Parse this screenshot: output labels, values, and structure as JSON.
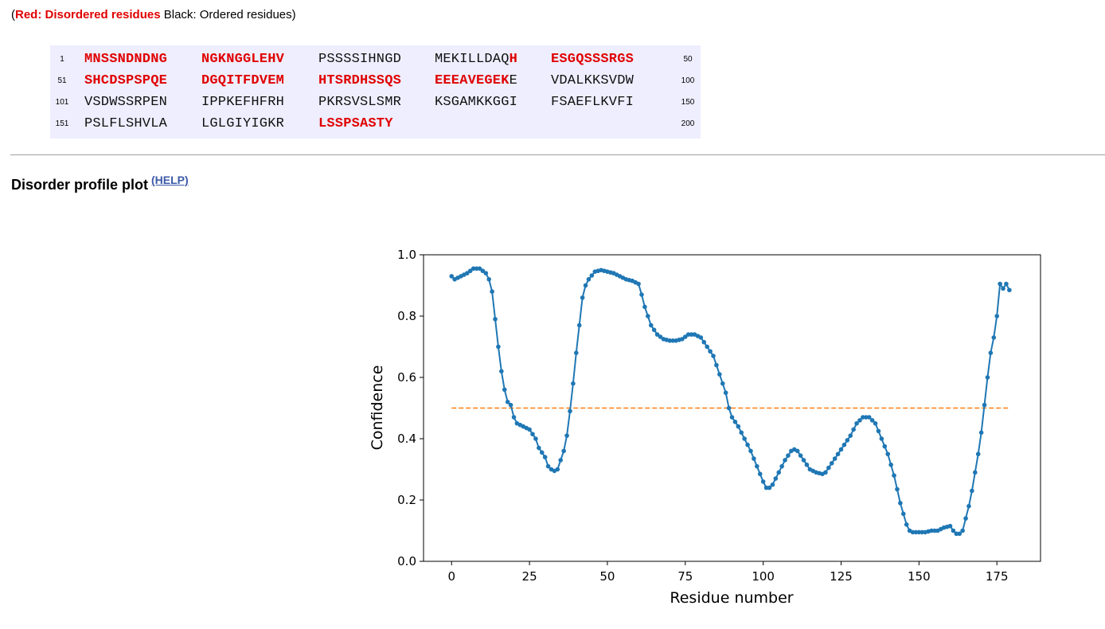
{
  "legend": {
    "open_paren": "(",
    "red_label": "Red: Disordered residues",
    "black_label": " Black: Ordered residues)"
  },
  "sequence_rows": [
    {
      "start": "1",
      "end": "50",
      "blocks": [
        [
          {
            "t": "MNSSNDNDNG",
            "d": true
          }
        ],
        [
          {
            "t": "NGKNGGLEHV",
            "d": true
          }
        ],
        [
          {
            "t": "PSSSSIHNGD",
            "d": false
          }
        ],
        [
          {
            "t": "MEKILLDAQ",
            "d": false
          },
          {
            "t": "H",
            "d": true
          }
        ],
        [
          {
            "t": "ESGQSSSRGS",
            "d": true
          }
        ]
      ]
    },
    {
      "start": "51",
      "end": "100",
      "blocks": [
        [
          {
            "t": "SHCDSPSPQE",
            "d": true
          }
        ],
        [
          {
            "t": "DGQITFDVEM",
            "d": true
          }
        ],
        [
          {
            "t": "HTSRDHSSQS",
            "d": true
          }
        ],
        [
          {
            "t": "EEEAVEGEK",
            "d": true
          },
          {
            "t": "E",
            "d": false
          }
        ],
        [
          {
            "t": "VDALKKSVDW",
            "d": false
          }
        ]
      ]
    },
    {
      "start": "101",
      "end": "150",
      "blocks": [
        [
          {
            "t": "VSDWSSRPEN",
            "d": false
          }
        ],
        [
          {
            "t": "IPPKEFHFRH",
            "d": false
          }
        ],
        [
          {
            "t": "PKRSVSLSMR",
            "d": false
          }
        ],
        [
          {
            "t": "KSGAMKKGGI",
            "d": false
          }
        ],
        [
          {
            "t": "FSAEFLKVFI",
            "d": false
          }
        ]
      ]
    },
    {
      "start": "151",
      "end": "200",
      "blocks": [
        [
          {
            "t": "PSLFLSHVLA",
            "d": false
          }
        ],
        [
          {
            "t": "LGLGIYIGKR",
            "d": false
          }
        ],
        [
          {
            "t": "LSSPSASTY",
            "d": true
          }
        ]
      ]
    }
  ],
  "section": {
    "title": "Disorder profile plot",
    "help": "(HELP)"
  },
  "colors": {
    "disordered": "#e00000",
    "series": "#1f77b4",
    "threshold": "#ff7f0e",
    "sequence_bg": "#eeeeff"
  },
  "chart_data": {
    "type": "line",
    "xlabel": "Residue number",
    "ylabel": "Confidence",
    "xlim": [
      -9,
      189
    ],
    "ylim": [
      0,
      1
    ],
    "xticks": [
      0,
      25,
      50,
      75,
      100,
      125,
      150,
      175
    ],
    "yticks": [
      0.0,
      0.2,
      0.4,
      0.6,
      0.8,
      1.0
    ],
    "ytick_labels": [
      "0.0",
      "0.2",
      "0.4",
      "0.6",
      "0.8",
      "1.0"
    ],
    "grid": false,
    "threshold": 0.5,
    "threshold_range": [
      0,
      179
    ],
    "keypoints": [
      [
        0,
        0.93
      ],
      [
        1,
        0.92
      ],
      [
        3,
        0.93
      ],
      [
        5,
        0.94
      ],
      [
        7,
        0.955
      ],
      [
        9,
        0.955
      ],
      [
        11,
        0.94
      ],
      [
        12,
        0.92
      ],
      [
        13,
        0.88
      ],
      [
        14,
        0.79
      ],
      [
        15,
        0.7
      ],
      [
        16,
        0.62
      ],
      [
        17,
        0.56
      ],
      [
        18,
        0.52
      ],
      [
        19,
        0.51
      ],
      [
        20,
        0.47
      ],
      [
        21,
        0.45
      ],
      [
        23,
        0.44
      ],
      [
        25,
        0.43
      ],
      [
        27,
        0.4
      ],
      [
        28,
        0.37
      ],
      [
        30,
        0.34
      ],
      [
        31,
        0.31
      ],
      [
        32,
        0.3
      ],
      [
        33,
        0.295
      ],
      [
        34,
        0.3
      ],
      [
        35,
        0.33
      ],
      [
        36,
        0.36
      ],
      [
        37,
        0.41
      ],
      [
        38,
        0.49
      ],
      [
        39,
        0.58
      ],
      [
        40,
        0.68
      ],
      [
        41,
        0.77
      ],
      [
        42,
        0.86
      ],
      [
        43,
        0.9
      ],
      [
        44,
        0.92
      ],
      [
        46,
        0.945
      ],
      [
        48,
        0.95
      ],
      [
        50,
        0.945
      ],
      [
        52,
        0.94
      ],
      [
        54,
        0.93
      ],
      [
        56,
        0.92
      ],
      [
        58,
        0.915
      ],
      [
        60,
        0.905
      ],
      [
        61,
        0.87
      ],
      [
        62,
        0.83
      ],
      [
        63,
        0.8
      ],
      [
        64,
        0.77
      ],
      [
        66,
        0.74
      ],
      [
        68,
        0.725
      ],
      [
        70,
        0.72
      ],
      [
        72,
        0.72
      ],
      [
        74,
        0.725
      ],
      [
        76,
        0.74
      ],
      [
        78,
        0.74
      ],
      [
        80,
        0.73
      ],
      [
        82,
        0.7
      ],
      [
        84,
        0.67
      ],
      [
        86,
        0.61
      ],
      [
        88,
        0.55
      ],
      [
        89,
        0.5
      ],
      [
        90,
        0.47
      ],
      [
        92,
        0.44
      ],
      [
        94,
        0.4
      ],
      [
        96,
        0.36
      ],
      [
        98,
        0.31
      ],
      [
        100,
        0.26
      ],
      [
        101,
        0.24
      ],
      [
        102,
        0.24
      ],
      [
        103,
        0.25
      ],
      [
        105,
        0.29
      ],
      [
        107,
        0.33
      ],
      [
        109,
        0.36
      ],
      [
        110,
        0.365
      ],
      [
        111,
        0.36
      ],
      [
        113,
        0.33
      ],
      [
        115,
        0.3
      ],
      [
        117,
        0.29
      ],
      [
        119,
        0.285
      ],
      [
        120,
        0.29
      ],
      [
        122,
        0.32
      ],
      [
        124,
        0.35
      ],
      [
        126,
        0.38
      ],
      [
        128,
        0.41
      ],
      [
        130,
        0.45
      ],
      [
        132,
        0.47
      ],
      [
        134,
        0.47
      ],
      [
        136,
        0.45
      ],
      [
        138,
        0.4
      ],
      [
        140,
        0.35
      ],
      [
        142,
        0.28
      ],
      [
        144,
        0.19
      ],
      [
        146,
        0.12
      ],
      [
        147,
        0.1
      ],
      [
        148,
        0.095
      ],
      [
        150,
        0.095
      ],
      [
        152,
        0.095
      ],
      [
        154,
        0.1
      ],
      [
        156,
        0.1
      ],
      [
        158,
        0.11
      ],
      [
        160,
        0.115
      ],
      [
        161,
        0.1
      ],
      [
        162,
        0.09
      ],
      [
        163,
        0.09
      ],
      [
        164,
        0.1
      ],
      [
        165,
        0.14
      ],
      [
        166,
        0.18
      ],
      [
        167,
        0.23
      ],
      [
        168,
        0.29
      ],
      [
        169,
        0.35
      ],
      [
        170,
        0.42
      ],
      [
        171,
        0.51
      ],
      [
        172,
        0.6
      ],
      [
        173,
        0.68
      ],
      [
        174,
        0.73
      ],
      [
        175,
        0.8
      ],
      [
        176,
        0.905
      ],
      [
        177,
        0.89
      ],
      [
        178,
        0.905
      ],
      [
        179,
        0.885
      ]
    ]
  }
}
